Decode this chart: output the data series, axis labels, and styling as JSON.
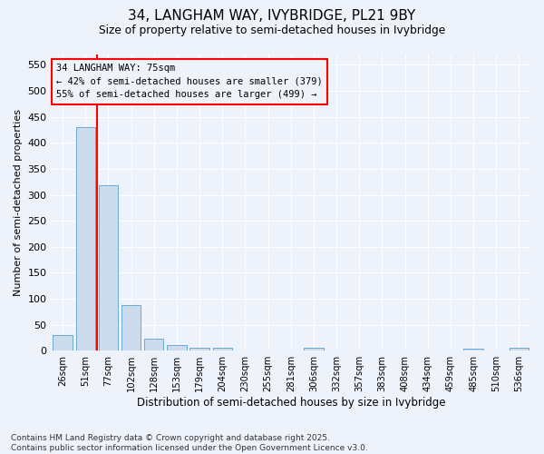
{
  "title": "34, LANGHAM WAY, IVYBRIDGE, PL21 9BY",
  "subtitle": "Size of property relative to semi-detached houses in Ivybridge",
  "xlabel": "Distribution of semi-detached houses by size in Ivybridge",
  "ylabel": "Number of semi-detached properties",
  "categories": [
    "26sqm",
    "51sqm",
    "77sqm",
    "102sqm",
    "128sqm",
    "153sqm",
    "179sqm",
    "204sqm",
    "230sqm",
    "255sqm",
    "281sqm",
    "306sqm",
    "332sqm",
    "357sqm",
    "383sqm",
    "408sqm",
    "434sqm",
    "459sqm",
    "485sqm",
    "510sqm",
    "536sqm"
  ],
  "values": [
    30,
    430,
    318,
    88,
    23,
    10,
    6,
    5,
    0,
    0,
    0,
    5,
    0,
    0,
    0,
    0,
    0,
    0,
    4,
    0,
    5
  ],
  "bar_color": "#ccdcec",
  "bar_edge_color": "#6aaad4",
  "annotation_text_line1": "34 LANGHAM WAY: 75sqm",
  "annotation_text_line2": "← 42% of semi-detached houses are smaller (379)",
  "annotation_text_line3": "55% of semi-detached houses are larger (499) →",
  "red_line_x": 1.5,
  "ylim": [
    0,
    570
  ],
  "yticks": [
    0,
    50,
    100,
    150,
    200,
    250,
    300,
    350,
    400,
    450,
    500,
    550
  ],
  "bg_color": "#eef2fa",
  "grid_color": "#ffffff",
  "footer": "Contains HM Land Registry data © Crown copyright and database right 2025.\nContains public sector information licensed under the Open Government Licence v3.0."
}
